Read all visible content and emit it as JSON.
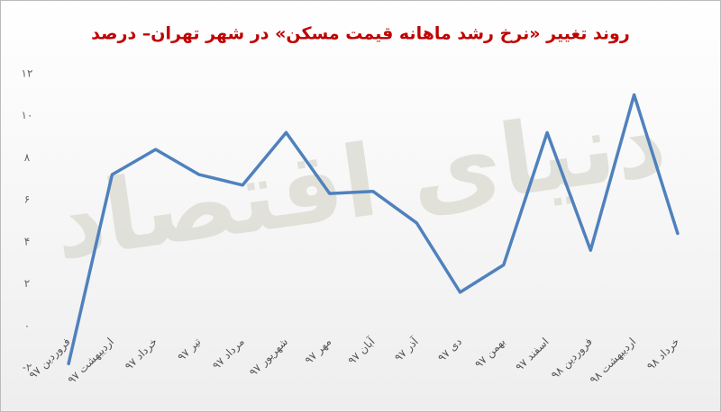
{
  "chart_data": {
    "type": "line",
    "title": "روند تغییر «نرخ رشد ماهانه قیمت مسکن» در شهر تهران– درصد",
    "watermark": "دنیای اقتصاد",
    "categories": [
      "فروردین ۹۷",
      "اردیبهشت ۹۷",
      "خرداد ۹۷",
      "تیر ۹۷",
      "مرداد ۹۷",
      "شهریور ۹۷",
      "مهر ۹۷",
      "آبان ۹۷",
      "آذر ۹۷",
      "دی ۹۷",
      "بهمن ۹۷",
      "اسفند ۹۷",
      "فروردین ۹۸",
      "اردیبهشت ۹۸",
      "خرداد ۹۸"
    ],
    "values": [
      -1.8,
      7.2,
      8.4,
      7.2,
      6.7,
      9.2,
      6.3,
      6.4,
      4.9,
      1.6,
      2.9,
      9.2,
      3.6,
      11.0,
      4.4
    ],
    "color": "#4f81bd",
    "ylim": [
      -2,
      12
    ],
    "yticks": [
      {
        "value": -2,
        "label": "-۲"
      },
      {
        "value": 0,
        "label": "۰"
      },
      {
        "value": 2,
        "label": "۲"
      },
      {
        "value": 4,
        "label": "۴"
      },
      {
        "value": 6,
        "label": "۶"
      },
      {
        "value": 8,
        "label": "۸"
      },
      {
        "value": 10,
        "label": "۱۰"
      },
      {
        "value": 12,
        "label": "۱۲"
      }
    ],
    "grid": false
  }
}
